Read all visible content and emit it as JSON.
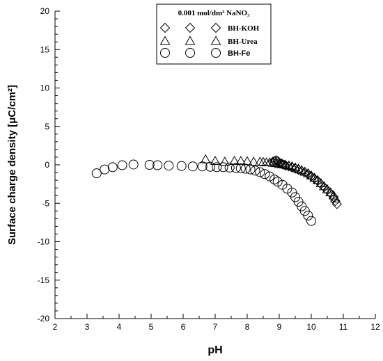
{
  "chart_data": {
    "type": "scatter",
    "xlabel": "pH",
    "ylabel": "Surface charge density  [μC/cm²]",
    "xlim": [
      2,
      12
    ],
    "ylim": [
      -20,
      20
    ],
    "x_ticks": [
      "2",
      "3",
      "4",
      "5",
      "6",
      "7",
      "8",
      "9",
      "10",
      "11",
      "12"
    ],
    "y_ticks": [
      "20",
      "15",
      "10",
      "5",
      "0",
      "-5",
      "-10",
      "-15",
      "-20"
    ],
    "grid": false,
    "legend_title": "0.001 mol/dm³ NaNO₃",
    "legend_position": "top-center",
    "series": [
      {
        "name": "BH-KOH",
        "marker": "diamond",
        "x": [
          8.8,
          8.85,
          8.9,
          8.95,
          9.0,
          9.05,
          9.1,
          9.15,
          9.2,
          9.3,
          9.4,
          9.5,
          9.6,
          9.7,
          9.8,
          9.9,
          10.0,
          10.1,
          10.2,
          10.3,
          10.4,
          10.5,
          10.6,
          10.7,
          10.75,
          10.8
        ],
        "y": [
          0.4,
          0.5,
          0.6,
          0.5,
          0.3,
          0.2,
          0.1,
          0.0,
          -0.1,
          -0.2,
          -0.35,
          -0.5,
          -0.65,
          -0.8,
          -1.0,
          -1.2,
          -1.5,
          -1.8,
          -2.1,
          -2.5,
          -2.9,
          -3.3,
          -3.7,
          -4.2,
          -4.7,
          -5.1
        ]
      },
      {
        "name": "BH-Urea",
        "marker": "triangle",
        "x": [
          6.7,
          7.0,
          7.3,
          7.6,
          7.8,
          8.0,
          8.2,
          8.4,
          8.5,
          8.6,
          8.7,
          8.8,
          8.9,
          9.0,
          9.1,
          9.2,
          9.3,
          9.4,
          9.5,
          9.6,
          9.7,
          9.8,
          9.9,
          10.0,
          10.1,
          10.2,
          10.3,
          10.4,
          10.5,
          10.6,
          10.7,
          10.75
        ],
        "y": [
          0.7,
          0.5,
          0.4,
          0.5,
          0.5,
          0.45,
          0.4,
          0.4,
          0.35,
          0.3,
          0.3,
          0.25,
          0.2,
          0.1,
          0.05,
          0.0,
          -0.1,
          -0.2,
          -0.35,
          -0.5,
          -0.7,
          -0.9,
          -1.1,
          -1.4,
          -1.7,
          -2.0,
          -2.4,
          -2.8,
          -3.2,
          -3.6,
          -4.0,
          -4.4
        ]
      },
      {
        "name": "BH-Fe",
        "marker": "circle",
        "x": [
          3.3,
          3.55,
          3.8,
          4.1,
          4.45,
          4.95,
          5.2,
          5.55,
          5.95,
          6.3,
          6.6,
          6.85,
          7.05,
          7.25,
          7.45,
          7.65,
          7.8,
          7.95,
          8.1,
          8.25,
          8.4,
          8.55,
          8.7,
          8.85,
          8.95,
          9.1,
          9.25,
          9.4,
          9.5,
          9.6,
          9.7,
          9.8,
          9.9,
          10.0
        ],
        "y": [
          -1.1,
          -0.6,
          -0.3,
          -0.05,
          0.05,
          0.0,
          -0.05,
          -0.1,
          -0.15,
          -0.2,
          -0.2,
          -0.25,
          -0.3,
          -0.3,
          -0.35,
          -0.4,
          -0.45,
          -0.5,
          -0.6,
          -0.75,
          -0.95,
          -1.2,
          -1.5,
          -1.9,
          -2.2,
          -2.6,
          -3.1,
          -3.6,
          -4.2,
          -4.8,
          -5.4,
          -6.0,
          -6.6,
          -7.3
        ]
      }
    ]
  }
}
